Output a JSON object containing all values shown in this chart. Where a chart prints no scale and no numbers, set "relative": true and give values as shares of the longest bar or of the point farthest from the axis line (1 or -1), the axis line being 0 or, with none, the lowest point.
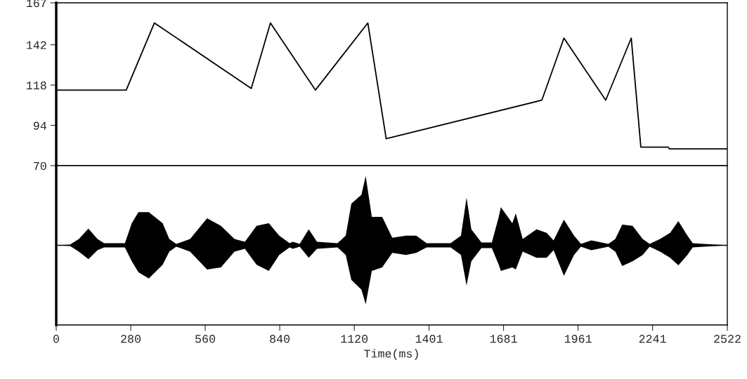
{
  "chart_data": [
    {
      "type": "line",
      "xlim": [
        0,
        2522
      ],
      "xticks": [
        0,
        280,
        560,
        840,
        1120,
        1401,
        1681,
        1961,
        2241,
        2522
      ],
      "ylim": [
        70,
        167
      ],
      "yticks": [
        70,
        94,
        118,
        142,
        167
      ],
      "tick_labels": "y",
      "marker": "none",
      "line_style": "solid",
      "series": [
        {
          "color": "#000000",
          "x": [
            0,
            263,
            369,
            733,
            805,
            974,
            1171,
            1240,
            1825,
            1908,
            2065,
            2161,
            2197,
            2300,
            2305,
            2522
          ],
          "values": [
            115,
            115,
            155,
            116,
            155,
            115,
            155,
            86,
            109,
            146,
            109,
            146,
            81,
            81,
            80,
            80
          ]
        }
      ]
    },
    {
      "type": "area",
      "relative": true,
      "xlim": [
        0,
        2522
      ],
      "xticks": [
        0,
        280,
        560,
        840,
        1120,
        1401,
        1681,
        1961,
        2241,
        2522
      ],
      "tick_labels": "x",
      "xlabel": "Time(ms)",
      "x": [
        0,
        52,
        85,
        121,
        155,
        180,
        258,
        284,
        309,
        348,
        400,
        425,
        451,
        503,
        567,
        619,
        670,
        709,
        753,
        799,
        838,
        877,
        889,
        915,
        949,
        980,
        1057,
        1088,
        1109,
        1147,
        1163,
        1186,
        1225,
        1263,
        1315,
        1353,
        1392,
        1482,
        1521,
        1542,
        1560,
        1598,
        1637,
        1663,
        1671,
        1714,
        1727,
        1753,
        1805,
        1843,
        1869,
        1908,
        1946,
        1972,
        2011,
        2037,
        2075,
        2101,
        2127,
        2166,
        2204,
        2230,
        2269,
        2307,
        2338,
        2372,
        2392,
        2522
      ],
      "series": [
        {
          "color": "#000000",
          "values": [
            0,
            0.01,
            0.09,
            0.24,
            0.09,
            0.03,
            0.03,
            0.32,
            0.48,
            0.48,
            0.32,
            0.09,
            0.02,
            0.09,
            0.39,
            0.28,
            0.09,
            0.05,
            0.28,
            0.32,
            0.14,
            0.03,
            0.05,
            0.02,
            0.23,
            0.05,
            0.03,
            0.14,
            0.6,
            0.73,
            1,
            0.41,
            0.41,
            0.11,
            0.14,
            0.14,
            0.03,
            0.03,
            0.14,
            0.69,
            0.23,
            0.04,
            0.04,
            0.41,
            0.55,
            0.32,
            0.46,
            0.09,
            0.23,
            0.18,
            0.07,
            0.37,
            0.14,
            0.02,
            0.07,
            0.05,
            0.02,
            0.09,
            0.3,
            0.28,
            0.09,
            0.02,
            0.09,
            0.18,
            0.35,
            0.14,
            0.03,
            0
          ]
        },
        {
          "color": "#000000",
          "values": [
            0,
            -0.01,
            -0.09,
            -0.2,
            -0.07,
            -0.03,
            -0.03,
            -0.23,
            -0.39,
            -0.48,
            -0.28,
            -0.09,
            -0.02,
            -0.09,
            -0.35,
            -0.32,
            -0.09,
            -0.05,
            -0.28,
            -0.37,
            -0.14,
            -0.03,
            -0.05,
            -0.02,
            -0.18,
            -0.05,
            -0.03,
            -0.14,
            -0.5,
            -0.64,
            -0.85,
            -0.37,
            -0.32,
            -0.11,
            -0.14,
            -0.11,
            -0.03,
            -0.03,
            -0.14,
            -0.58,
            -0.23,
            -0.04,
            -0.04,
            -0.28,
            -0.37,
            -0.32,
            -0.35,
            -0.09,
            -0.18,
            -0.18,
            -0.07,
            -0.44,
            -0.14,
            -0.02,
            -0.07,
            -0.05,
            -0.02,
            -0.09,
            -0.3,
            -0.23,
            -0.14,
            -0.02,
            -0.09,
            -0.18,
            -0.29,
            -0.14,
            -0.03,
            0
          ]
        }
      ]
    }
  ]
}
